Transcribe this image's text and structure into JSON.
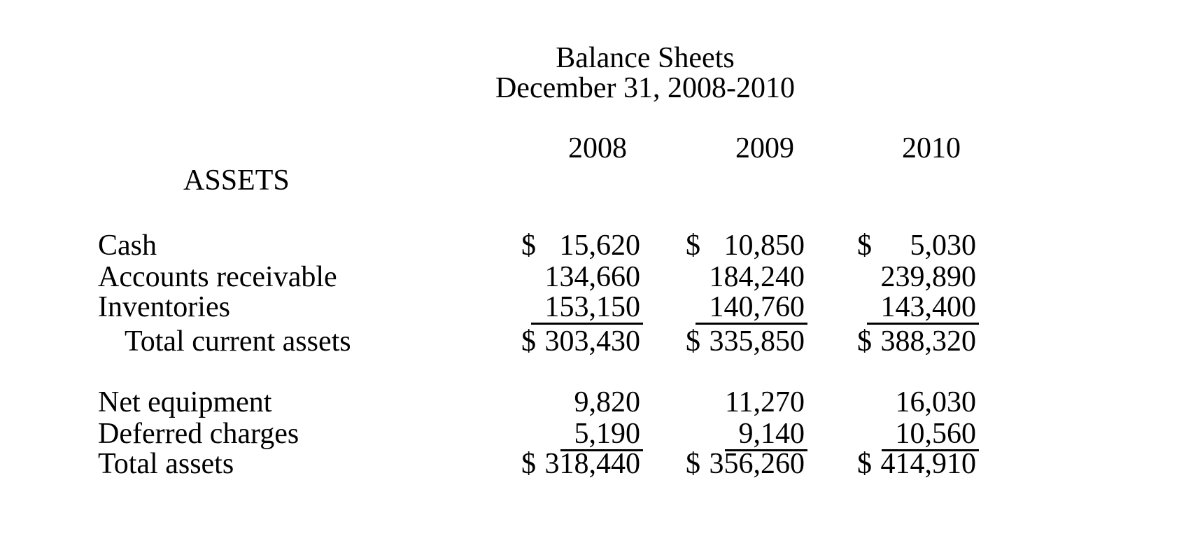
{
  "colors": {
    "background": "#ffffff",
    "text": "#000000",
    "rule": "#000000"
  },
  "document": {
    "title": "Balance Sheets",
    "subtitle": "December 31, 2008-2010",
    "section_header": "ASSETS",
    "currency_symbol": "$",
    "years": [
      "2008",
      "2009",
      "2010"
    ],
    "rows": [
      {
        "label": "Cash",
        "indent": 0,
        "dollar": true,
        "underline": false,
        "values": [
          "15,620",
          "10,850",
          "5,030"
        ]
      },
      {
        "label": "Accounts receivable",
        "indent": 0,
        "dollar": false,
        "underline": false,
        "values": [
          "134,660",
          "184,240",
          "239,890"
        ]
      },
      {
        "label": "Inventories",
        "indent": 0,
        "dollar": false,
        "underline": true,
        "values": [
          "153,150",
          "140,760",
          "143,400"
        ]
      },
      {
        "label": "Total current assets",
        "indent": 1,
        "dollar": true,
        "underline": false,
        "values": [
          "303,430",
          "335,850",
          "388,320"
        ]
      },
      {
        "label": "Net equipment",
        "indent": 0,
        "dollar": false,
        "underline": false,
        "values": [
          "9,820",
          "11,270",
          "16,030"
        ]
      },
      {
        "label": "Deferred charges",
        "indent": 0,
        "dollar": false,
        "underline": true,
        "values": [
          "5,190",
          "9,140",
          "10,560"
        ]
      },
      {
        "label": "Total assets",
        "indent": 0,
        "dollar": true,
        "underline": false,
        "values": [
          "318,440",
          "356,260",
          "414,910"
        ]
      }
    ]
  }
}
